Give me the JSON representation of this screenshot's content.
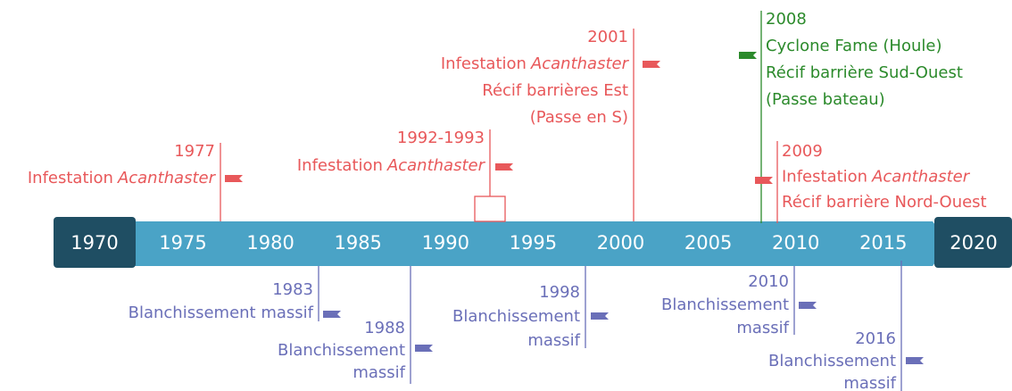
{
  "axis": {
    "start": "1970",
    "end": "2020",
    "ticks": [
      "1975",
      "1980",
      "1985",
      "1990",
      "1995",
      "2000",
      "2005",
      "2010",
      "2015"
    ]
  },
  "events": [
    {
      "date": "1977",
      "color": "#e8585a",
      "lines": [
        {
          "text": "Infestation",
          "em": "Acanthaster"
        }
      ]
    },
    {
      "date": "1992-1993",
      "color": "#e8585a",
      "lines": [
        {
          "text": "Infestation",
          "em": "Acanthaster"
        }
      ]
    },
    {
      "date": "2001",
      "color": "#e8585a",
      "lines": [
        {
          "text": "Infestation",
          "em": "Acanthaster"
        },
        {
          "text": "Récif barrières Est"
        },
        {
          "text": "(Passe en S)"
        }
      ]
    },
    {
      "date": "2008",
      "color": "#2b8a2b",
      "lines": [
        {
          "text": "Cyclone Fame (Houle)"
        },
        {
          "text": "Récif barrière Sud-Ouest"
        },
        {
          "text": "(Passe bateau)"
        }
      ]
    },
    {
      "date": "2009",
      "color": "#e8585a",
      "lines": [
        {
          "text": "Infestation",
          "em": "Acanthaster"
        },
        {
          "text": "Récif barrière Nord-Ouest"
        }
      ]
    },
    {
      "date": "1983",
      "color": "#6a6fb8",
      "lines": [
        {
          "text": "Blanchissement massif"
        }
      ]
    },
    {
      "date": "1988",
      "color": "#6a6fb8",
      "lines": [
        {
          "text": "Blanchissement"
        },
        {
          "text": "massif"
        }
      ]
    },
    {
      "date": "1998",
      "color": "#6a6fb8",
      "lines": [
        {
          "text": "Blanchissement"
        },
        {
          "text": "massif"
        }
      ]
    },
    {
      "date": "2010",
      "color": "#6a6fb8",
      "lines": [
        {
          "text": "Blanchissement"
        },
        {
          "text": "massif"
        }
      ]
    },
    {
      "date": "2016",
      "color": "#6a6fb8",
      "lines": [
        {
          "text": "Blanchissement"
        },
        {
          "text": "massif"
        }
      ]
    }
  ]
}
